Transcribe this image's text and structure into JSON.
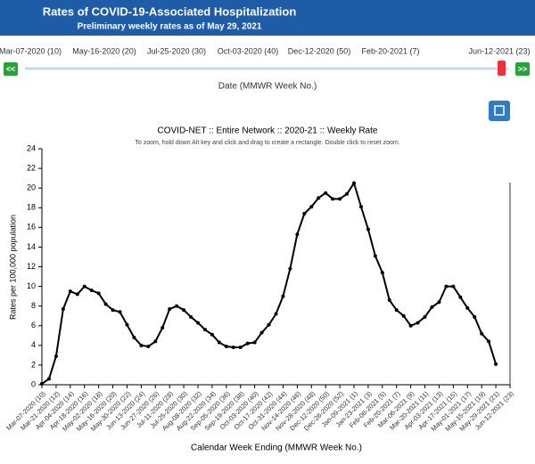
{
  "ui": {
    "title": "Rates of COVID-19-Associated Hospitalization",
    "subtitle": "Preliminary weekly rates as of May 29, 2021",
    "slider_labels": [
      "Mar-07-2020 (10)",
      "May-16-2020 (20)",
      "Jul-25-2020 (30)",
      "Oct-03-2020 (40)",
      "Dec-12-2020 (50)",
      "Feb-20-2021 (7)",
      "Jun-12-2021 (23)"
    ],
    "prev_button": "<<",
    "next_button": ">>",
    "slider_caption": "Date (MMWR Week No.)"
  },
  "chart_data": {
    "type": "line",
    "title": "COVID-NET :: Entire Network :: 2020-21 :: Weekly Rate",
    "subtitle": "To zoom, hold down Alt key and click and drag to create a rectangle. Double click to reset zoom.",
    "x_label": "Calendar Week Ending (MMWR Week No.)",
    "y_label": "Rates per 100,000 population",
    "categories": [
      "Mar-07-2020 (10)",
      null,
      "Mar-21-2020 (12)",
      null,
      "Apr-04-2020 (14)",
      null,
      "Apr-18-2020 (16)",
      null,
      "May-02-2020 (18)",
      null,
      "May-16-2020 (20)",
      null,
      "May-30-2020 (22)",
      null,
      "Jun-13-2020 (24)",
      null,
      "Jun-27-2020 (26)",
      null,
      "Jul-11-2020 (28)",
      null,
      "Jul-25-2020 (30)",
      null,
      "Aug-08-2020 (32)",
      null,
      "Aug-22-2020 (34)",
      null,
      "Sep-05-2020 (36)",
      null,
      "Sep-19-2020 (38)",
      null,
      "Oct-03-2020 (40)",
      null,
      "Oct-17-2020 (42)",
      null,
      "Oct-31-2020 (44)",
      null,
      "Nov-14-2020 (46)",
      null,
      "Nov-28-2020 (48)",
      null,
      "Dec-12-2020 (50)",
      null,
      "Dec-26-2020 (52)",
      null,
      "Jan-09-2021 (1)",
      null,
      "Jan-23-2021 (3)",
      null,
      "Feb-06-2021 (5)",
      null,
      "Feb-20-2021 (7)",
      null,
      "Mar-06-2021 (9)",
      null,
      "Mar-20-2021 (11)",
      null,
      "Apr-03-2021 (13)",
      null,
      "Apr-17-2021 (15)",
      null,
      "May-01-2021 (17)",
      null,
      "May-15-2021 (19)",
      null,
      "May-29-2021 (21)",
      null,
      "Jun-12-2021 (23)"
    ],
    "values": [
      0.1,
      0.6,
      2.9,
      7.7,
      9.5,
      9.2,
      10.0,
      9.6,
      9.3,
      8.2,
      7.6,
      7.4,
      6.1,
      4.8,
      4.0,
      3.9,
      4.4,
      5.8,
      7.7,
      8.0,
      7.6,
      6.9,
      6.3,
      5.6,
      5.1,
      4.3,
      3.9,
      3.8,
      3.8,
      4.2,
      4.3,
      5.3,
      6.1,
      7.2,
      9.0,
      11.8,
      15.3,
      17.4,
      18.1,
      19.0,
      19.5,
      18.9,
      18.9,
      19.4,
      20.5,
      18.1,
      15.8,
      13.1,
      11.4,
      8.6,
      7.6,
      7.0,
      6.0,
      6.3,
      6.9,
      7.9,
      8.4,
      10.0,
      10.0,
      8.9,
      7.8,
      6.9,
      5.2,
      4.4,
      2.1,
      null,
      null
    ],
    "color": "#000000",
    "ylim": [
      0,
      24
    ],
    "yticks": [
      0,
      2,
      4,
      6,
      8,
      10,
      12,
      14,
      16,
      18,
      20,
      22,
      24
    ]
  }
}
